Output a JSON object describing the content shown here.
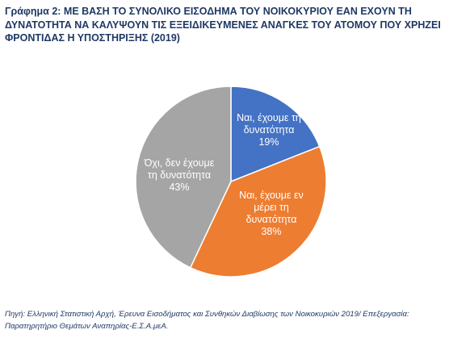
{
  "title": {
    "line1": "Γράφημα 2: ΜΕ ΒΑΣΗ ΤΟ ΣΥΝΟΛΙΚΟ ΕΙΣΟΔΗΜΑ ΤΟΥ ΝΟΙΚΟΚΥΡΙΟΥ ΕΑΝ ΕΧΟΥΝ ΤΗ",
    "line2": "ΔΥΝΑΤΟΤΗΤΑ ΝΑ ΚΑΛΥΨΟΥΝ ΤΙΣ ΕΞΕΙΔΙΚΕΥΜΕΝΕΣ ΑΝΑΓΚΕΣ ΤΟΥ ΑΤΟΜΟΥ ΠΟΥ ΧΡΗΖΕΙ",
    "line3": "ΦΡΟΝΤΙΔΑΣ Η ΥΠΟΣΤΗΡΙΞΗΣ (2019)"
  },
  "chart_data": {
    "type": "pie",
    "title": "Γράφημα 2: ΜΕ ΒΑΣΗ ΤΟ ΣΥΝΟΛΙΚΟ ΕΙΣΟΔΗΜΑ ΤΟΥ ΝΟΙΚΟΚΥΡΙΟΥ ΕΑΝ ΕΧΟΥΝ ΤΗ ΔΥΝΑΤΟΤΗΤΑ ΝΑ ΚΑΛΥΨΟΥΝ ΤΙΣ ΕΞΕΙΔΙΚΕΥΜΕΝΕΣ ΑΝΑΓΚΕΣ ΤΟΥ ΑΤΟΜΟΥ ΠΟΥ ΧΡΗΖΕΙ ΦΡΟΝΤΙΔΑΣ Η ΥΠΟΣΤΗΡΙΞΗΣ (2019)",
    "start_angle_deg": 0,
    "direction": "clockwise",
    "slices": [
      {
        "label": "Ναι, έχουμε τη δυνατότητα",
        "label_lines": [
          "Ναι, έχουμε τη",
          "δυνατότητα",
          "19%"
        ],
        "value": 19,
        "value_label": "19%",
        "color": "#4472c4"
      },
      {
        "label": "Ναι, έχουμε εν μέρει τη δυνατότητα",
        "label_lines": [
          "Ναι, έχουμε εν",
          "μέρει τη",
          "δυνατότητα",
          "38%"
        ],
        "value": 38,
        "value_label": "38%",
        "color": "#ed7d31"
      },
      {
        "label": "Όχι, δεν έχουμε τη δυνατότητα",
        "label_lines": [
          "Όχι, δεν έχουμε",
          "τη δυνατότητα",
          "43%"
        ],
        "value": 43,
        "value_label": "43%",
        "color": "#a5a5a5"
      }
    ],
    "slice_border_color": "#ffffff"
  },
  "source": {
    "line1": "Πηγή: Ελληνική Στατιστική Αρχή, Έρευνα Εισοδήματος και Συνθηκών Διαβίωσης των Νοικοκυριών 2019/ Επεξεργασία:",
    "line2": "Παρατηρητήριο Θεμάτων Αναπηρίας-Ε.Σ.Α.μεΑ."
  }
}
